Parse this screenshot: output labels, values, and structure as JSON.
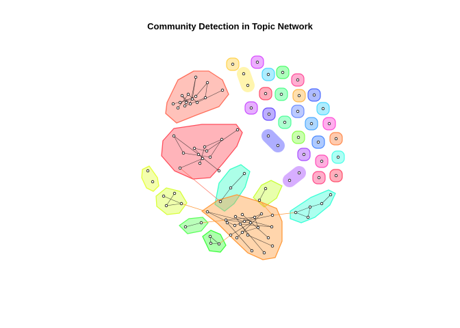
{
  "chart_data": {
    "type": "network",
    "title": "Community Detection in Topic Network",
    "communities": [
      {
        "id": "red-1",
        "color": "#ff7f6e",
        "node_count": 14
      },
      {
        "id": "red-2",
        "color": "#ff5a6a",
        "node_count": 13
      },
      {
        "id": "yellow-green-1",
        "color": "#e5ff5a",
        "node_count": 2
      },
      {
        "id": "yellow-green-2",
        "color": "#d8ff5a",
        "node_count": 4
      },
      {
        "id": "green-1",
        "color": "#6aff6a",
        "node_count": 2
      },
      {
        "id": "green-2",
        "color": "#4cff4c",
        "node_count": 3
      },
      {
        "id": "teal-1",
        "color": "#4cffc8",
        "node_count": 3
      },
      {
        "id": "lime-1",
        "color": "#c9ff4c",
        "node_count": 2
      },
      {
        "id": "orange-1",
        "color": "#ffa64c",
        "node_count": 22
      },
      {
        "id": "teal-2",
        "color": "#4cffd8",
        "node_count": 6
      },
      {
        "id": "purple-1",
        "color": "#a64cff",
        "node_count": 2
      },
      {
        "id": "blue-1",
        "color": "#4c4cff",
        "node_count": 2
      }
    ]
  }
}
